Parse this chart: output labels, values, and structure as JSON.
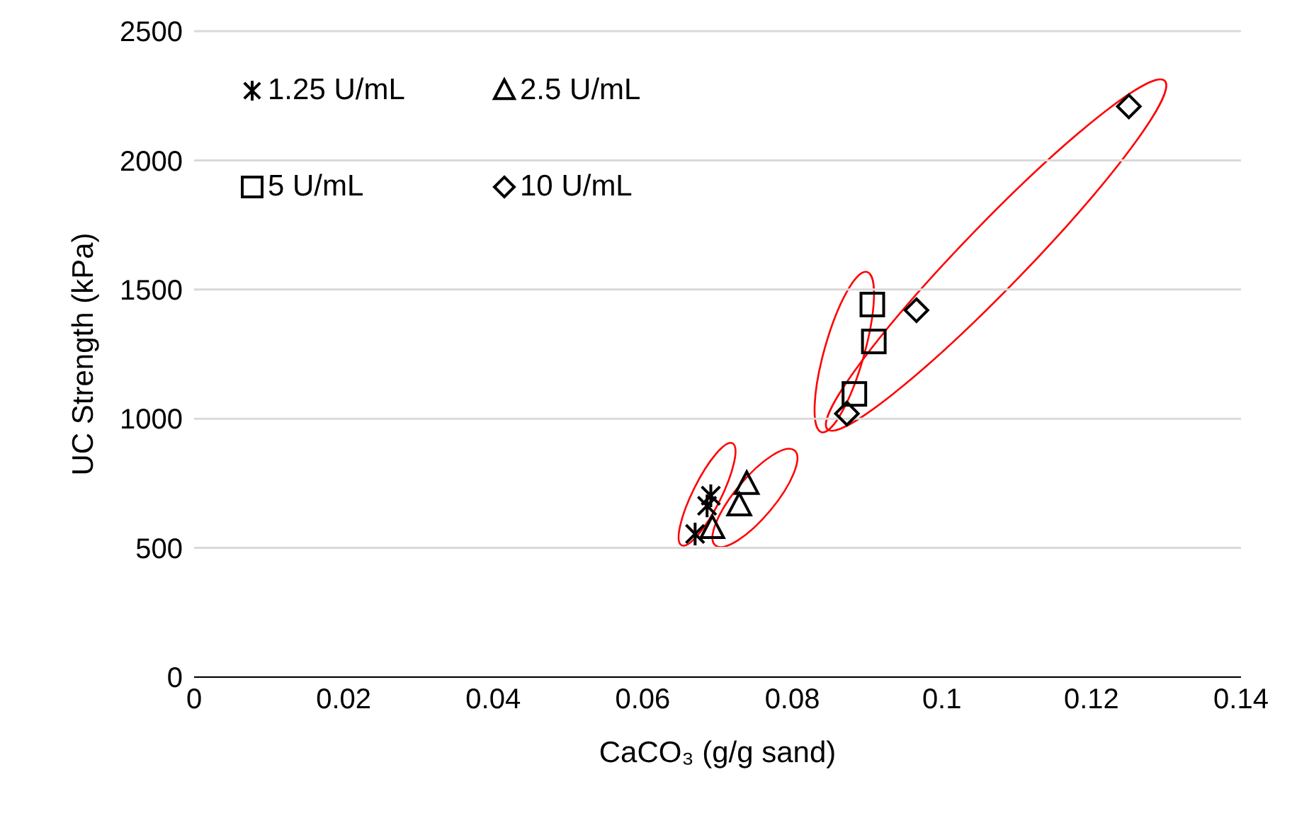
{
  "chart_data": {
    "type": "scatter",
    "xlabel": "CaCO₃ (g/g sand)",
    "ylabel": "UC Strength (kPa)",
    "xlim": [
      0,
      0.14
    ],
    "xticks": [
      0,
      0.02,
      0.04,
      0.06,
      0.08,
      0.1,
      0.12,
      0.14
    ],
    "ylim": [
      0,
      2500
    ],
    "yticks": [
      0,
      500,
      1000,
      1500,
      2000,
      2500
    ],
    "grid": "y",
    "legend": "top left",
    "series": [
      {
        "name": "1.25 U/mL",
        "color": "#000000",
        "marker": "cross",
        "x": [
          0.067,
          0.0691,
          0.0686
        ],
        "values": [
          554,
          702,
          663
        ]
      },
      {
        "name": "2.5 U/mL",
        "color": "#000000",
        "marker": "triangle",
        "x": [
          0.0739,
          0.0729,
          0.0693
        ],
        "values": [
          746,
          663,
          575
        ]
      },
      {
        "name": "5 U/mL",
        "color": "#000000",
        "marker": "square",
        "x": [
          0.0907,
          0.0909,
          0.0883
        ],
        "values": [
          1442,
          1299,
          1096
        ]
      },
      {
        "name": "10 U/mL",
        "color": "#000000",
        "marker": "diamond",
        "x": [
          0.0873,
          0.0966,
          0.125
        ],
        "values": [
          1020,
          1420,
          2209
        ]
      }
    ]
  }
}
